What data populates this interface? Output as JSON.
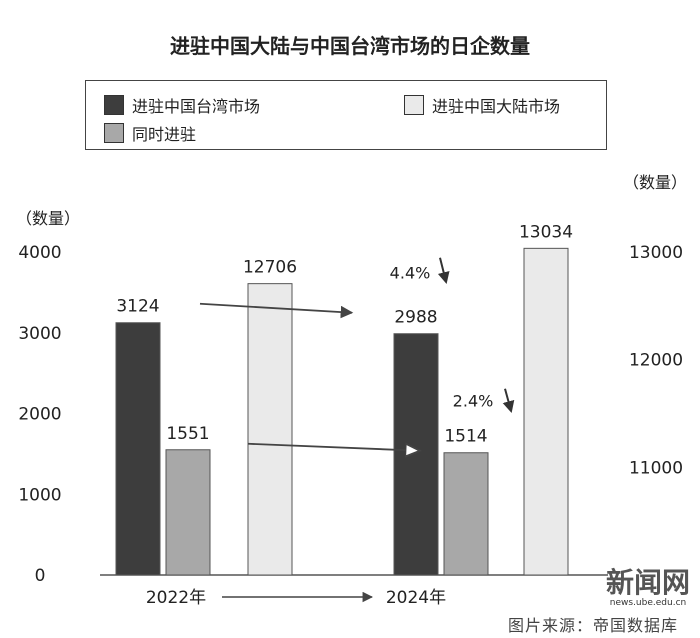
{
  "title": "进驻中国大陆与中国台湾市场的日企数量",
  "legend": [
    {
      "label": "进驻中国台湾市场",
      "color": "#3d3d3d"
    },
    {
      "label": "进驻中国大陆市场",
      "color": "#eaeaea"
    },
    {
      "label": "同时进驻",
      "color": "#a8a8a8"
    }
  ],
  "credit": "图片来源：帝国数据库",
  "watermark": {
    "logo": "新闻网",
    "url": "news.ube.edu.cn"
  },
  "chart_data": {
    "type": "bar",
    "categories": [
      "2022年",
      "2024年"
    ],
    "left_axis": {
      "label": "（数量）",
      "ticks": [
        "0",
        "1000",
        "2000",
        "3000",
        "4000"
      ],
      "ylim": [
        0,
        4000
      ]
    },
    "right_axis": {
      "label": "（数量）",
      "ticks": [
        "11000",
        "12000",
        "13000"
      ],
      "ylim": [
        10000,
        13000
      ]
    },
    "series": [
      {
        "name": "进驻中国台湾市场",
        "axis": "left",
        "values": [
          3124,
          2988
        ],
        "labels": [
          "3124",
          "2988"
        ],
        "color": "#3d3d3d"
      },
      {
        "name": "同时进驻",
        "axis": "left",
        "values": [
          1551,
          1514
        ],
        "labels": [
          "1551",
          "1514"
        ],
        "color": "#a8a8a8"
      },
      {
        "name": "进驻中国大陆市场",
        "axis": "right",
        "values": [
          12706,
          13034
        ],
        "labels": [
          "12706",
          "13034"
        ],
        "color": "#eaeaea"
      }
    ],
    "annotations": [
      {
        "text": "4.4%",
        "series": "进驻中国台湾市场",
        "direction": "down"
      },
      {
        "text": "2.4%",
        "series": "同时进驻",
        "direction": "down"
      }
    ],
    "grid": false,
    "legend_position": "top"
  }
}
